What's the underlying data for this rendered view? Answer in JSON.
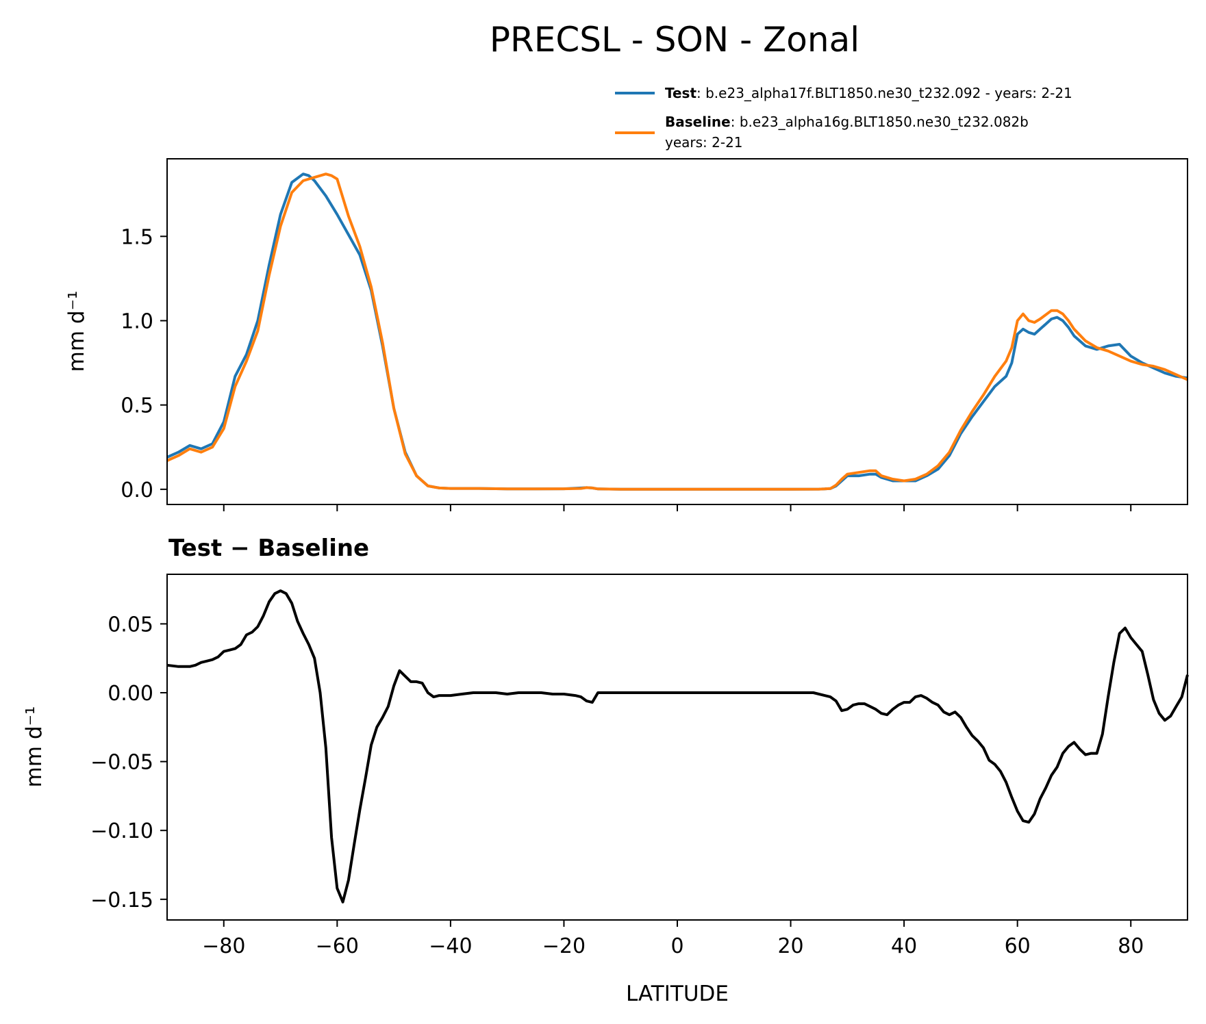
{
  "figure": {
    "title": "PRECSL - SON - Zonal",
    "xlabel": "LATITUDE"
  },
  "legend": {
    "test_bold": "Test",
    "test_text": ": b.e23_alpha17f.BLT1850.ne30_t232.092 - years: 2-21",
    "baseline_bold": "Baseline",
    "baseline_text": ": b.e23_alpha16g.BLT1850.ne30_t232.082b",
    "baseline_text2": "years: 2-21"
  },
  "colors": {
    "test": "#1f77b4",
    "baseline": "#ff7f0e",
    "diff": "#000000"
  },
  "chart_data": [
    {
      "type": "line",
      "panel": "top",
      "title": "",
      "xlabel": "",
      "ylabel": "mm d⁻¹",
      "xlim": [
        -90,
        90
      ],
      "ylim": [
        -0.09,
        1.96
      ],
      "xticks": [
        -80,
        -60,
        -40,
        -20,
        0,
        20,
        40,
        60,
        80
      ],
      "yticks": [
        0.0,
        0.5,
        1.0,
        1.5
      ],
      "ytick_labels": [
        "0.0",
        "0.5",
        "1.0",
        "1.5"
      ],
      "grid": false,
      "legend_position": "above-right",
      "series": [
        {
          "name": "Test",
          "x": [
            -90,
            -88,
            -86,
            -84,
            -82,
            -80,
            -78,
            -76,
            -74,
            -72,
            -70,
            -68,
            -66,
            -65,
            -64,
            -62,
            -60,
            -58,
            -56,
            -54,
            -52,
            -50,
            -48,
            -46,
            -44,
            -42,
            -40,
            -35,
            -30,
            -25,
            -20,
            -17,
            -16,
            -15,
            -14,
            -10,
            0,
            10,
            20,
            25,
            26,
            27,
            28,
            29,
            30,
            32,
            34,
            35,
            36,
            38,
            40,
            42,
            44,
            46,
            48,
            50,
            52,
            54,
            56,
            58,
            59,
            60,
            61,
            62,
            63,
            64,
            66,
            67,
            68,
            69,
            70,
            72,
            74,
            76,
            78,
            80,
            82,
            84,
            86,
            88,
            90
          ],
          "values": [
            0.19,
            0.22,
            0.26,
            0.24,
            0.27,
            0.4,
            0.67,
            0.8,
            1.0,
            1.33,
            1.63,
            1.82,
            1.87,
            1.86,
            1.83,
            1.74,
            1.63,
            1.51,
            1.39,
            1.18,
            0.85,
            0.48,
            0.22,
            0.08,
            0.02,
            0.008,
            0.005,
            0.005,
            0.002,
            0.002,
            0.003,
            0.008,
            0.01,
            0.008,
            0.002,
            0.0,
            0.0,
            0.0,
            0.0,
            0.001,
            0.002,
            0.004,
            0.02,
            0.05,
            0.08,
            0.08,
            0.09,
            0.09,
            0.07,
            0.05,
            0.05,
            0.05,
            0.08,
            0.12,
            0.2,
            0.33,
            0.43,
            0.52,
            0.61,
            0.67,
            0.75,
            0.92,
            0.95,
            0.93,
            0.92,
            0.95,
            1.01,
            1.02,
            1.0,
            0.96,
            0.91,
            0.85,
            0.83,
            0.85,
            0.86,
            0.79,
            0.75,
            0.72,
            0.69,
            0.67,
            0.66
          ]
        },
        {
          "name": "Baseline",
          "x": [
            -90,
            -88,
            -86,
            -84,
            -82,
            -80,
            -78,
            -76,
            -74,
            -72,
            -70,
            -68,
            -66,
            -64,
            -62,
            -61,
            -60,
            -58,
            -56,
            -54,
            -52,
            -50,
            -48,
            -46,
            -44,
            -42,
            -40,
            -35,
            -30,
            -25,
            -20,
            -17,
            -16,
            -15,
            -14,
            -10,
            0,
            10,
            20,
            25,
            26,
            27,
            28,
            29,
            30,
            32,
            34,
            35,
            36,
            38,
            40,
            42,
            44,
            46,
            48,
            50,
            52,
            54,
            56,
            58,
            59,
            60,
            61,
            62,
            63,
            64,
            66,
            67,
            68,
            69,
            70,
            72,
            74,
            76,
            78,
            80,
            82,
            84,
            86,
            88,
            90
          ],
          "values": [
            0.17,
            0.2,
            0.24,
            0.22,
            0.25,
            0.36,
            0.61,
            0.76,
            0.94,
            1.27,
            1.56,
            1.76,
            1.83,
            1.85,
            1.87,
            1.86,
            1.84,
            1.62,
            1.44,
            1.2,
            0.87,
            0.48,
            0.21,
            0.08,
            0.02,
            0.008,
            0.005,
            0.005,
            0.002,
            0.002,
            0.003,
            0.005,
            0.01,
            0.008,
            0.002,
            0.0,
            0.0,
            0.0,
            0.0,
            0.001,
            0.002,
            0.004,
            0.025,
            0.06,
            0.09,
            0.1,
            0.11,
            0.11,
            0.08,
            0.06,
            0.05,
            0.06,
            0.09,
            0.14,
            0.22,
            0.35,
            0.46,
            0.56,
            0.67,
            0.76,
            0.84,
            1.0,
            1.04,
            1.0,
            0.99,
            1.01,
            1.06,
            1.06,
            1.04,
            1.0,
            0.95,
            0.88,
            0.84,
            0.82,
            0.79,
            0.76,
            0.74,
            0.73,
            0.71,
            0.68,
            0.65
          ]
        }
      ]
    },
    {
      "type": "line",
      "panel": "bottom",
      "title": "Test − Baseline",
      "xlabel": "LATITUDE",
      "ylabel": "mm d⁻¹",
      "xlim": [
        -90,
        90
      ],
      "ylim": [
        -0.165,
        0.086
      ],
      "xticks": [
        -80,
        -60,
        -40,
        -20,
        0,
        20,
        40,
        60,
        80
      ],
      "xtick_labels": [
        "−80",
        "−60",
        "−40",
        "−20",
        "0",
        "20",
        "40",
        "60",
        "80"
      ],
      "yticks": [
        0.05,
        0.0,
        -0.05,
        -0.1,
        -0.15
      ],
      "ytick_labels": [
        "0.05",
        "0.00",
        "−0.05",
        "−0.10",
        "−0.15"
      ],
      "grid": false,
      "series": [
        {
          "name": "",
          "x": [
            -90,
            -88,
            -86,
            -85,
            -84,
            -83,
            -82,
            -81,
            -80,
            -79,
            -78,
            -77,
            -76,
            -75,
            -74,
            -73,
            -72,
            -71,
            -70,
            -69,
            -68,
            -67,
            -66,
            -65,
            -64,
            -63,
            -62,
            -61,
            -60,
            -59,
            -58,
            -57,
            -56,
            -55,
            -54,
            -53,
            -52,
            -51,
            -50,
            -49,
            -48,
            -47,
            -46,
            -45,
            -44,
            -43,
            -42,
            -40,
            -38,
            -36,
            -34,
            -32,
            -30,
            -28,
            -26,
            -24,
            -22,
            -20,
            -18,
            -17,
            -16,
            -15,
            -14,
            -10,
            0,
            10,
            20,
            22,
            24,
            26,
            27,
            28,
            29,
            30,
            31,
            32,
            33,
            34,
            35,
            36,
            37,
            38,
            39,
            40,
            41,
            42,
            43,
            44,
            45,
            46,
            47,
            48,
            49,
            50,
            51,
            52,
            53,
            54,
            55,
            56,
            57,
            58,
            59,
            60,
            61,
            62,
            63,
            64,
            65,
            66,
            67,
            68,
            69,
            70,
            71,
            72,
            73,
            74,
            75,
            76,
            77,
            78,
            79,
            80,
            81,
            82,
            83,
            84,
            85,
            86,
            87,
            88,
            89,
            90
          ],
          "values": [
            0.02,
            0.019,
            0.019,
            0.02,
            0.022,
            0.023,
            0.024,
            0.026,
            0.03,
            0.031,
            0.032,
            0.035,
            0.042,
            0.044,
            0.048,
            0.056,
            0.066,
            0.072,
            0.074,
            0.072,
            0.065,
            0.052,
            0.043,
            0.035,
            0.025,
            0.0,
            -0.04,
            -0.105,
            -0.142,
            -0.152,
            -0.136,
            -0.11,
            -0.085,
            -0.062,
            -0.038,
            -0.025,
            -0.018,
            -0.01,
            0.005,
            0.016,
            0.012,
            0.008,
            0.008,
            0.007,
            0.0,
            -0.003,
            -0.002,
            -0.002,
            -0.001,
            0.0,
            0.0,
            0.0,
            -0.001,
            0.0,
            0.0,
            0.0,
            -0.001,
            -0.001,
            -0.002,
            -0.003,
            -0.006,
            -0.007,
            0.0,
            0.0,
            0.0,
            0.0,
            0.0,
            0.0,
            0.0,
            -0.002,
            -0.003,
            -0.006,
            -0.013,
            -0.012,
            -0.009,
            -0.008,
            -0.008,
            -0.01,
            -0.012,
            -0.015,
            -0.016,
            -0.012,
            -0.009,
            -0.007,
            -0.007,
            -0.003,
            -0.002,
            -0.004,
            -0.007,
            -0.009,
            -0.014,
            -0.016,
            -0.014,
            -0.018,
            -0.025,
            -0.031,
            -0.035,
            -0.04,
            -0.049,
            -0.052,
            -0.057,
            -0.065,
            -0.076,
            -0.086,
            -0.093,
            -0.094,
            -0.088,
            -0.077,
            -0.069,
            -0.06,
            -0.054,
            -0.044,
            -0.039,
            -0.036,
            -0.041,
            -0.045,
            -0.044,
            -0.044,
            -0.03,
            -0.003,
            0.022,
            0.043,
            0.047,
            0.04,
            0.035,
            0.03,
            0.013,
            -0.005,
            -0.015,
            -0.02,
            -0.017,
            -0.01,
            -0.003,
            0.013
          ]
        }
      ]
    }
  ]
}
